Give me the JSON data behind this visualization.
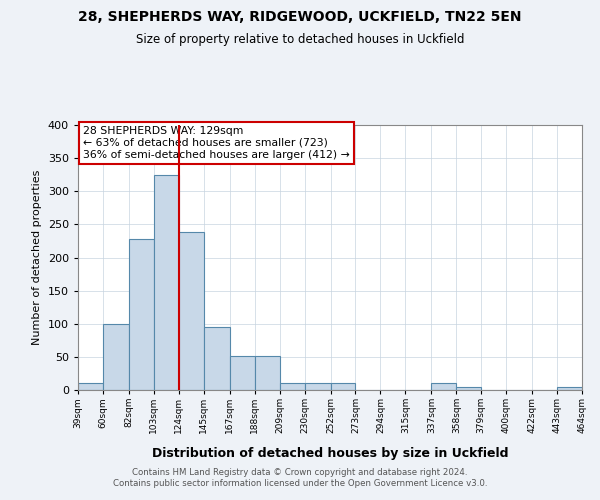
{
  "title1": "28, SHEPHERDS WAY, RIDGEWOOD, UCKFIELD, TN22 5EN",
  "title2": "Size of property relative to detached houses in Uckfield",
  "xlabel": "Distribution of detached houses by size in Uckfield",
  "ylabel": "Number of detached properties",
  "bar_left_edges": [
    39,
    60,
    82,
    103,
    124,
    145,
    167,
    188,
    209,
    230,
    252,
    273,
    294,
    315,
    337,
    358,
    379,
    400,
    422,
    443
  ],
  "bar_widths": [
    21,
    22,
    21,
    21,
    21,
    22,
    21,
    21,
    21,
    22,
    21,
    21,
    21,
    22,
    21,
    21,
    21,
    22,
    21,
    21
  ],
  "bar_heights": [
    10,
    100,
    228,
    325,
    238,
    95,
    52,
    52,
    10,
    10,
    10,
    0,
    0,
    0,
    10,
    5,
    0,
    0,
    0,
    5
  ],
  "bar_color": "#c8d8e8",
  "bar_edge_color": "#5588aa",
  "tick_labels": [
    "39sqm",
    "60sqm",
    "82sqm",
    "103sqm",
    "124sqm",
    "145sqm",
    "167sqm",
    "188sqm",
    "209sqm",
    "230sqm",
    "252sqm",
    "273sqm",
    "294sqm",
    "315sqm",
    "337sqm",
    "358sqm",
    "379sqm",
    "400sqm",
    "422sqm",
    "443sqm",
    "464sqm"
  ],
  "vline_x": 124,
  "vline_color": "#cc0000",
  "annotation_text": "28 SHEPHERDS WAY: 129sqm\n← 63% of detached houses are smaller (723)\n36% of semi-detached houses are larger (412) →",
  "annotation_box_color": "#ffffff",
  "annotation_box_edge": "#cc0000",
  "ylim": [
    0,
    400
  ],
  "yticks": [
    0,
    50,
    100,
    150,
    200,
    250,
    300,
    350,
    400
  ],
  "footer1": "Contains HM Land Registry data © Crown copyright and database right 2024.",
  "footer2": "Contains public sector information licensed under the Open Government Licence v3.0.",
  "bg_color": "#eef2f7",
  "plot_bg_color": "#ffffff",
  "grid_color": "#c8d4e0"
}
